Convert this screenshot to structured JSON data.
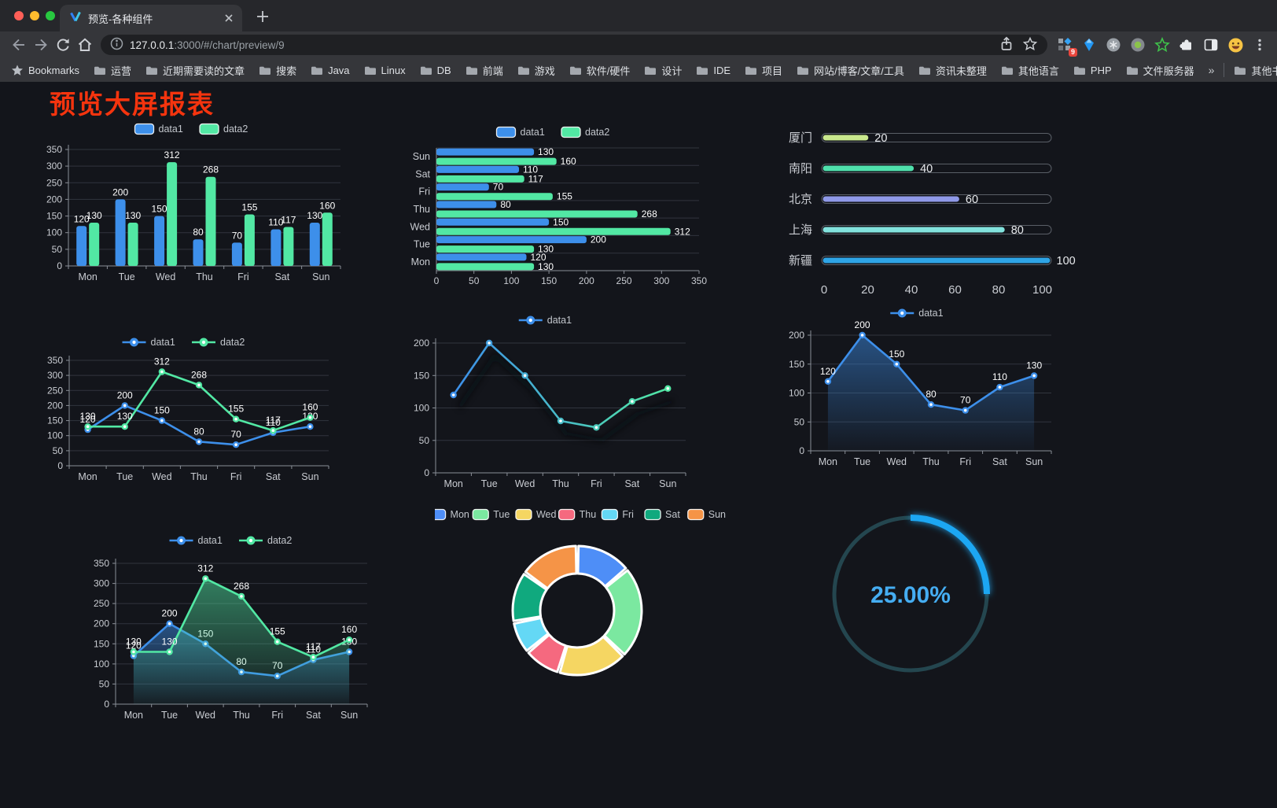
{
  "browser": {
    "tab_title": "预览-各种组件",
    "url_host": "127.0.0.1",
    "url_rest": ":3000/#/chart/preview/9",
    "bookmarks_title": "Bookmarks",
    "bookmarks": [
      "运营",
      "近期需要读的文章",
      "搜索",
      "Java",
      "Linux",
      "DB",
      "前端",
      "游戏",
      "软件/硬件",
      "设计",
      "IDE",
      "项目",
      "网站/博客/文章/工具",
      "资讯未整理",
      "其他语言",
      "PHP",
      "文件服务器"
    ],
    "overflow_chevron": "»",
    "other_bookmarks": "其他书签",
    "extension_badge": "9"
  },
  "page": {
    "title": "预览大屏报表"
  },
  "colors": {
    "title_red": "#f5340e",
    "series_blue": "#3d8fea",
    "series_green": "#52e8a4",
    "page_bg": "#13151b",
    "gauge_blue": "#1ea7f3"
  },
  "chart_data": [
    {
      "id": "bar-grouped",
      "type": "bar",
      "categories": [
        "Mon",
        "Tue",
        "Wed",
        "Thu",
        "Fri",
        "Sat",
        "Sun"
      ],
      "series": [
        {
          "name": "data1",
          "color": "#3d8fea",
          "values": [
            120,
            200,
            150,
            80,
            70,
            110,
            130
          ]
        },
        {
          "name": "data2",
          "color": "#52e8a4",
          "values": [
            130,
            130,
            312,
            268,
            155,
            117,
            160
          ]
        }
      ],
      "ylim": [
        0,
        350
      ],
      "ystep": 50,
      "legend_position": "top",
      "grid": true,
      "point_labels": true
    },
    {
      "id": "bar-horizontal",
      "type": "bar-horizontal",
      "categories": [
        "Mon",
        "Tue",
        "Wed",
        "Thu",
        "Fri",
        "Sat",
        "Sun"
      ],
      "series": [
        {
          "name": "data1",
          "color": "#3d8fea",
          "values": [
            120,
            200,
            150,
            80,
            70,
            110,
            130
          ]
        },
        {
          "name": "data2",
          "color": "#52e8a4",
          "values": [
            130,
            130,
            312,
            268,
            155,
            117,
            160
          ]
        }
      ],
      "xlim": [
        0,
        350
      ],
      "xstep": 50,
      "legend_position": "top",
      "point_labels": true
    },
    {
      "id": "city-progress",
      "type": "progress",
      "max": 100,
      "axis_ticks": [
        0,
        20,
        40,
        60,
        80,
        100
      ],
      "items": [
        {
          "label": "厦门",
          "value": 20,
          "color": "#c9e88d"
        },
        {
          "label": "南阳",
          "value": 40,
          "color": "#4fe0ac"
        },
        {
          "label": "北京",
          "value": 60,
          "color": "#8f99e8"
        },
        {
          "label": "上海",
          "value": 80,
          "color": "#82e2dd"
        },
        {
          "label": "新疆",
          "value": 100,
          "color": "#2ea4e6"
        }
      ]
    },
    {
      "id": "line-two-series",
      "type": "line",
      "categories": [
        "Mon",
        "Tue",
        "Wed",
        "Thu",
        "Fri",
        "Sat",
        "Sun"
      ],
      "series": [
        {
          "name": "data1",
          "color": "#3d8fea",
          "values": [
            120,
            200,
            150,
            80,
            70,
            110,
            130
          ]
        },
        {
          "name": "data2",
          "color": "#52e8a4",
          "values": [
            130,
            130,
            312,
            268,
            155,
            117,
            160
          ]
        }
      ],
      "ylim": [
        0,
        350
      ],
      "ystep": 50,
      "legend_position": "top",
      "point_labels": true
    },
    {
      "id": "line-gradient",
      "type": "line",
      "categories": [
        "Mon",
        "Tue",
        "Wed",
        "Thu",
        "Fri",
        "Sat",
        "Sun"
      ],
      "series": [
        {
          "name": "data1",
          "gradient": [
            "#3d8fea",
            "#52e8a4"
          ],
          "values": [
            120,
            200,
            150,
            80,
            70,
            110,
            130
          ]
        }
      ],
      "ylim": [
        0,
        200
      ],
      "ystep": 50,
      "legend_position": "top",
      "point_labels": false
    },
    {
      "id": "line-area",
      "type": "line",
      "categories": [
        "Mon",
        "Tue",
        "Wed",
        "Thu",
        "Fri",
        "Sat",
        "Sun"
      ],
      "series": [
        {
          "name": "data1",
          "color": "#3d8fea",
          "area": true,
          "values": [
            120,
            200,
            150,
            80,
            70,
            110,
            130
          ]
        }
      ],
      "ylim": [
        0,
        200
      ],
      "ystep": 50,
      "legend_position": "top",
      "point_labels": true
    },
    {
      "id": "line-area-two",
      "type": "line",
      "categories": [
        "Mon",
        "Tue",
        "Wed",
        "Thu",
        "Fri",
        "Sat",
        "Sun"
      ],
      "series": [
        {
          "name": "data1",
          "color": "#3d8fea",
          "area": true,
          "values": [
            120,
            200,
            150,
            80,
            70,
            110,
            130
          ]
        },
        {
          "name": "data2",
          "color": "#52e8a4",
          "area": true,
          "values": [
            130,
            130,
            312,
            268,
            155,
            117,
            160
          ]
        }
      ],
      "ylim": [
        0,
        350
      ],
      "ystep": 50,
      "legend_position": "top",
      "point_labels": true
    },
    {
      "id": "donut",
      "type": "pie",
      "start_angle": "top",
      "legend_position": "top",
      "inner_radius_ratio": 0.57,
      "items": [
        {
          "label": "Mon",
          "value": 120,
          "color": "#4e8ef7"
        },
        {
          "label": "Tue",
          "value": 200,
          "color": "#7be8a0"
        },
        {
          "label": "Wed",
          "value": 150,
          "color": "#f5d662"
        },
        {
          "label": "Thu",
          "value": 80,
          "color": "#f5697f"
        },
        {
          "label": "Fri",
          "value": 70,
          "color": "#64d8f5"
        },
        {
          "label": "Sat",
          "value": 110,
          "color": "#10a97e"
        },
        {
          "label": "Sun",
          "value": 130,
          "color": "#f59447"
        }
      ]
    },
    {
      "id": "gauge",
      "type": "gauge",
      "value": 25,
      "display": "25.00%",
      "color": "#1ea7f3",
      "track_color": "#24464f",
      "text_color": "#45adf2"
    }
  ]
}
